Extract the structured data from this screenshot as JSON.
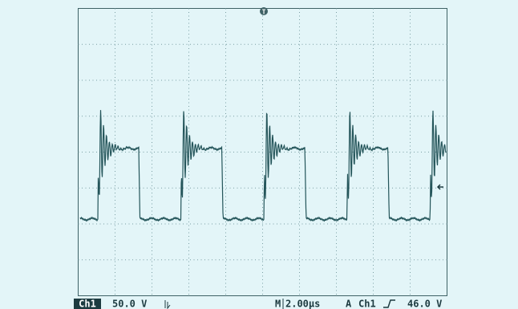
{
  "trigger_marker": "T",
  "status_bar": {
    "channel": "Ch1",
    "volts_per_div": "50.0 V",
    "mode": "M",
    "time_per_div": "2.00µs",
    "trigger_mode": "A",
    "trigger_source": "Ch1",
    "trigger_level": "46.0 V"
  }
}
